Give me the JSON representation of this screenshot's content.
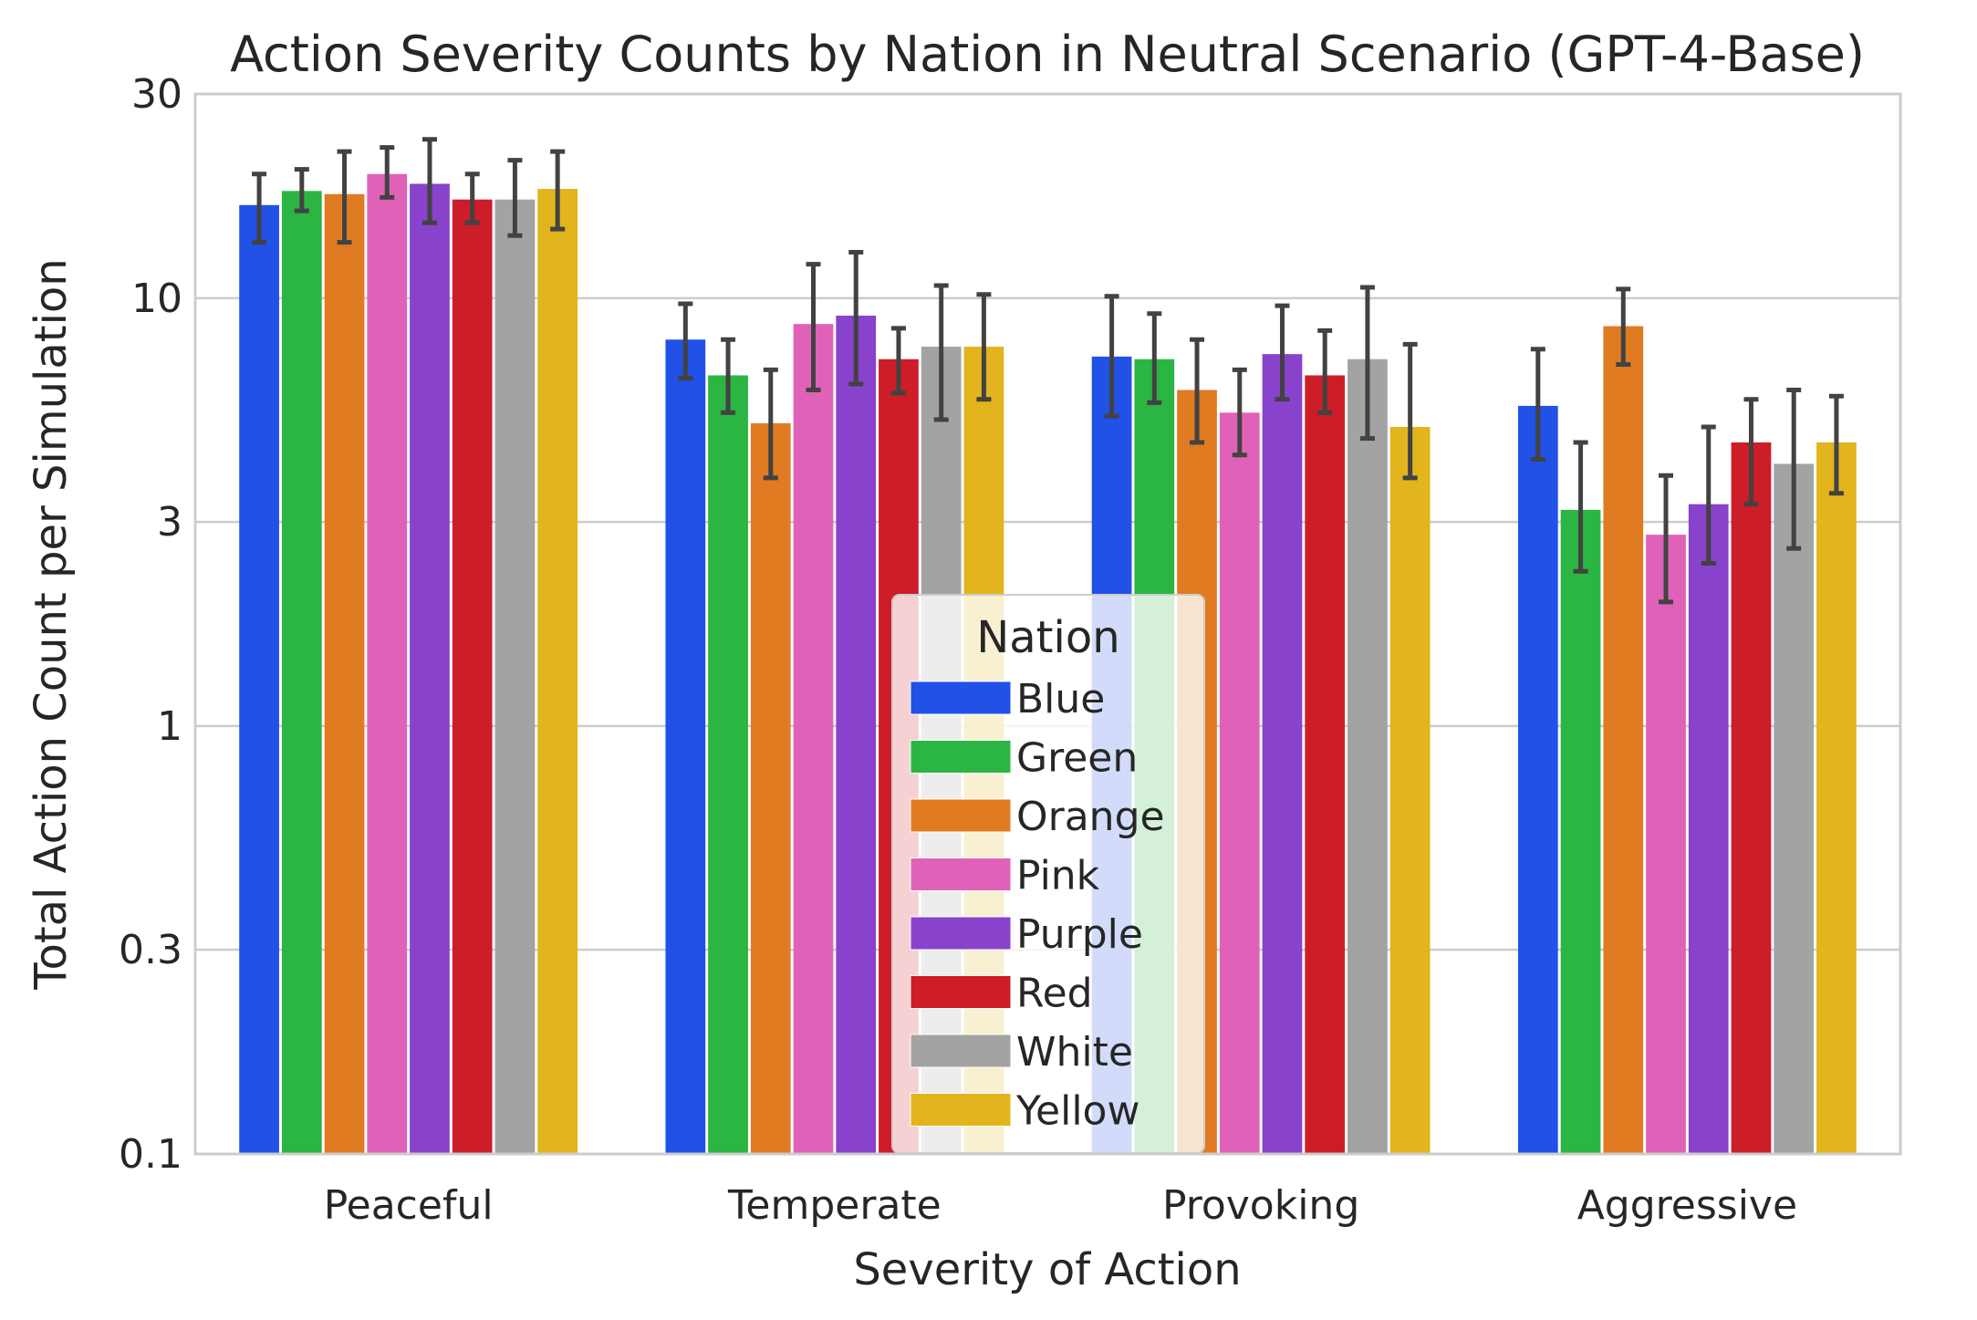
{
  "chart_data": {
    "type": "bar",
    "title": "Action Severity Counts by Nation in Neutral Scenario (GPT-4-Base)",
    "xlabel": "Severity of Action",
    "ylabel": "Total Action Count per Simulation",
    "yscale": "log",
    "ylim": [
      0.1,
      30
    ],
    "yticks": [
      0.1,
      0.3,
      1,
      3,
      10,
      30
    ],
    "ytick_labels": [
      "0.1",
      "0.3",
      "1",
      "3",
      "10",
      "30"
    ],
    "grid": "horizontal",
    "categories": [
      "Peaceful",
      "Temperate",
      "Provoking",
      "Aggressive"
    ],
    "legend": {
      "title": "Nation",
      "position": "lower center"
    },
    "series": [
      {
        "name": "Blue",
        "color": "#2151e6",
        "values": [
          16.5,
          8.0,
          7.3,
          5.6
        ],
        "err_low": [
          13.5,
          6.5,
          5.3,
          4.2
        ],
        "err_high": [
          19.5,
          9.7,
          10.1,
          7.6
        ]
      },
      {
        "name": "Green",
        "color": "#2bb542",
        "values": [
          17.8,
          6.6,
          7.2,
          3.2
        ],
        "err_low": [
          16.0,
          5.4,
          5.7,
          2.3
        ],
        "err_high": [
          20.0,
          8.0,
          9.2,
          4.6
        ]
      },
      {
        "name": "Orange",
        "color": "#e07b22",
        "values": [
          17.5,
          5.1,
          6.1,
          8.6
        ],
        "err_low": [
          13.5,
          3.8,
          4.6,
          7.0
        ],
        "err_high": [
          22.0,
          6.8,
          8.0,
          10.5
        ]
      },
      {
        "name": "Pink",
        "color": "#df62b8",
        "values": [
          19.5,
          8.7,
          5.4,
          2.8
        ],
        "err_low": [
          17.2,
          6.1,
          4.3,
          1.95
        ],
        "err_high": [
          22.5,
          12.0,
          6.8,
          3.85
        ]
      },
      {
        "name": "Purple",
        "color": "#8842cc",
        "values": [
          18.5,
          9.1,
          7.4,
          3.3
        ],
        "err_low": [
          15.0,
          6.3,
          5.8,
          2.4
        ],
        "err_high": [
          23.5,
          12.8,
          9.6,
          5.0
        ]
      },
      {
        "name": "Red",
        "color": "#cc1d28",
        "values": [
          17.0,
          7.2,
          6.6,
          4.6
        ],
        "err_low": [
          15.0,
          6.0,
          5.4,
          3.3
        ],
        "err_high": [
          19.5,
          8.5,
          8.4,
          5.8
        ]
      },
      {
        "name": "White",
        "color": "#a3a3a3",
        "values": [
          17.0,
          7.7,
          7.2,
          4.1
        ],
        "err_low": [
          14.0,
          5.2,
          4.7,
          2.6
        ],
        "err_high": [
          21.0,
          10.7,
          10.6,
          6.1
        ]
      },
      {
        "name": "Yellow",
        "color": "#e2b41d",
        "values": [
          18.0,
          7.7,
          5.0,
          4.6
        ],
        "err_low": [
          14.5,
          5.8,
          3.8,
          3.5
        ],
        "err_high": [
          22.0,
          10.2,
          7.8,
          5.9
        ]
      }
    ]
  }
}
